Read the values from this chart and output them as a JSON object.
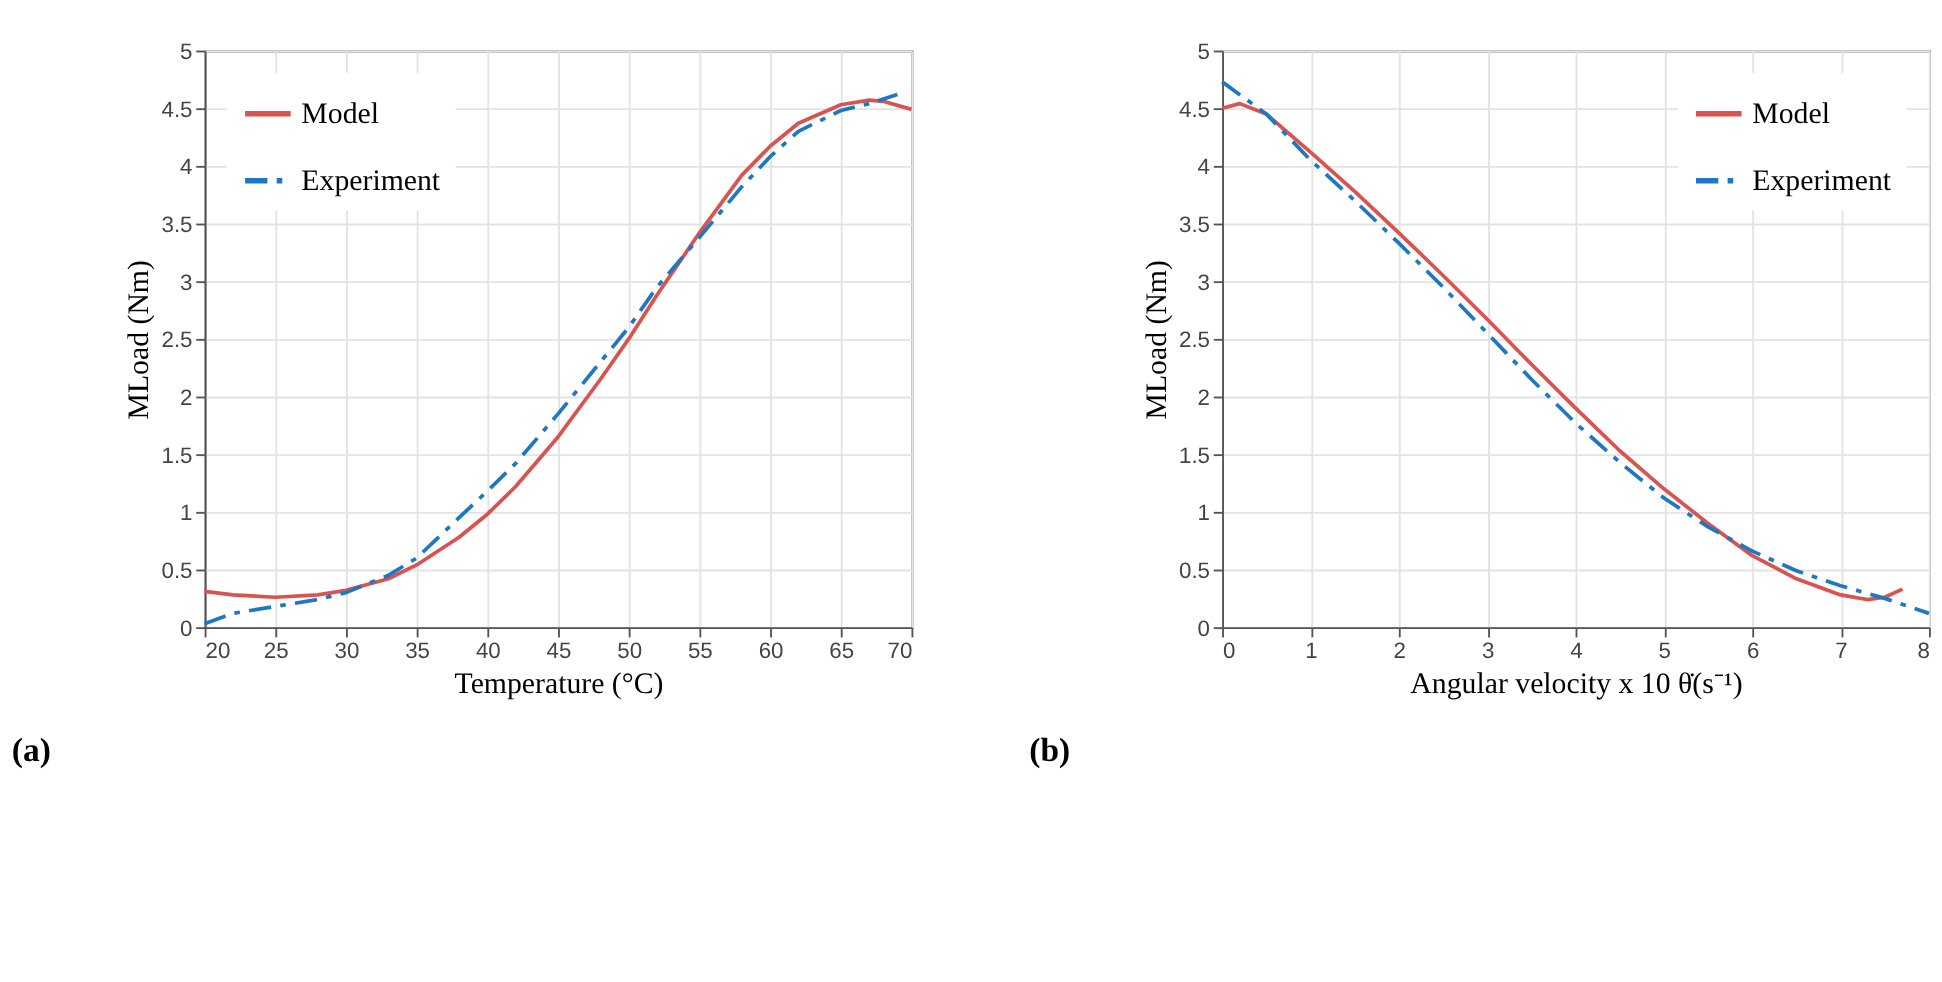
{
  "chart_data": [
    {
      "type": "line",
      "xlabel": "Temperature (°C)",
      "ylabel": "MLoad (Nm)",
      "annotations": [
        "(a)"
      ],
      "xlim": [
        20,
        70
      ],
      "xticks": [
        20,
        25,
        30,
        35,
        40,
        45,
        50,
        55,
        60,
        65,
        70
      ],
      "ylim": [
        0,
        5
      ],
      "yticks": [
        0,
        0.5,
        1,
        1.5,
        2,
        2.5,
        3,
        3.5,
        4,
        4.5,
        5
      ],
      "grid": true,
      "legend": "top left",
      "series": [
        {
          "name": "Model",
          "color": "#d9534f",
          "line_style": "solid",
          "x": [
            20,
            22,
            25,
            28,
            30,
            33,
            35,
            38,
            40,
            42,
            45,
            48,
            50,
            52,
            55,
            58,
            60,
            62,
            65,
            67,
            68,
            70
          ],
          "values": [
            0.31,
            0.28,
            0.26,
            0.28,
            0.32,
            0.42,
            0.54,
            0.78,
            0.98,
            1.22,
            1.65,
            2.15,
            2.5,
            2.88,
            3.42,
            3.92,
            4.17,
            4.37,
            4.53,
            4.57,
            4.56,
            4.49
          ]
        },
        {
          "name": "Experiment",
          "color": "#1f77c4",
          "line_style": "dashed",
          "x": [
            20,
            22,
            25,
            28,
            30,
            33,
            35,
            38,
            40,
            42,
            45,
            48,
            50,
            52,
            55,
            58,
            60,
            62,
            65,
            67,
            69
          ],
          "values": [
            0.03,
            0.12,
            0.18,
            0.24,
            0.3,
            0.45,
            0.6,
            0.95,
            1.18,
            1.42,
            1.85,
            2.3,
            2.6,
            2.95,
            3.38,
            3.82,
            4.08,
            4.3,
            4.48,
            4.54,
            4.62
          ]
        }
      ]
    },
    {
      "type": "line",
      "xlabel": "Angular velocity x 10  θ̇(s⁻¹)",
      "ylabel": "MLoad (Nm)",
      "annotations": [
        "(b)"
      ],
      "xlim": [
        0,
        8
      ],
      "xticks": [
        0,
        1,
        2,
        3,
        4,
        5,
        6,
        7,
        8
      ],
      "ylim": [
        0,
        5
      ],
      "yticks": [
        0,
        0.5,
        1,
        1.5,
        2,
        2.5,
        3,
        3.5,
        4,
        4.5,
        5
      ],
      "grid": true,
      "legend": "top right",
      "series": [
        {
          "name": "Model",
          "color": "#d9534f",
          "line_style": "solid",
          "x": [
            0,
            0.2,
            0.5,
            1,
            1.5,
            2,
            2.5,
            3,
            3.5,
            4,
            4.5,
            5,
            5.5,
            6,
            6.5,
            7,
            7.3,
            7.5,
            7.7
          ],
          "values": [
            4.5,
            4.54,
            4.45,
            4.12,
            3.78,
            3.42,
            3.05,
            2.67,
            2.28,
            1.9,
            1.53,
            1.2,
            0.9,
            0.62,
            0.42,
            0.28,
            0.24,
            0.26,
            0.33
          ]
        },
        {
          "name": "Experiment",
          "color": "#1f77c4",
          "line_style": "dashed",
          "x": [
            0,
            0.5,
            1,
            1.5,
            2,
            2.5,
            3,
            3.5,
            4,
            4.5,
            5,
            5.5,
            6,
            6.5,
            7,
            7.5,
            8
          ],
          "values": [
            4.73,
            4.45,
            4.05,
            3.7,
            3.33,
            2.95,
            2.55,
            2.15,
            1.77,
            1.43,
            1.12,
            0.87,
            0.66,
            0.49,
            0.36,
            0.25,
            0.12
          ]
        }
      ]
    }
  ]
}
